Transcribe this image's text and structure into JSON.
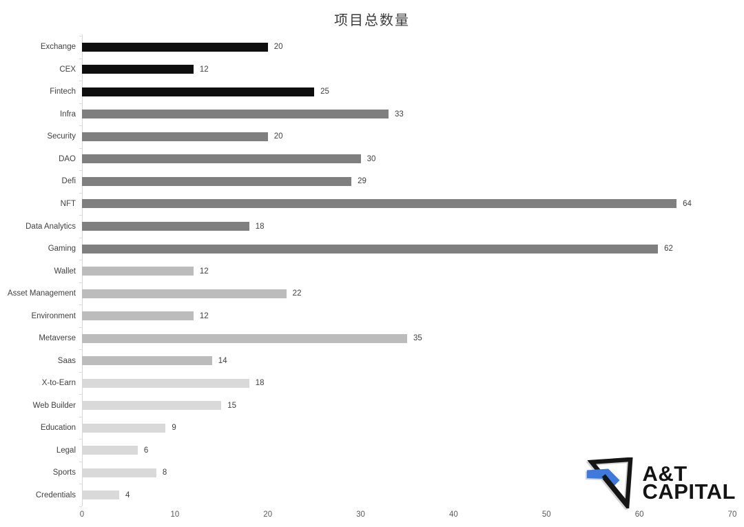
{
  "chart_data": {
    "type": "bar",
    "orientation": "horizontal",
    "title": "项目总数量",
    "categories": [
      "Exchange",
      "CEX",
      "Fintech",
      "Infra",
      "Security",
      "DAO",
      "Defi",
      "NFT",
      "Data Analytics",
      "Gaming",
      "Wallet",
      "Asset Management",
      "Environment",
      "Metaverse",
      "Saas",
      "X-to-Earn",
      "Web Builder",
      "Education",
      "Legal",
      "Sports",
      "Credentials"
    ],
    "values": [
      20,
      12,
      25,
      33,
      20,
      30,
      29,
      64,
      18,
      62,
      12,
      22,
      12,
      35,
      14,
      18,
      15,
      9,
      6,
      8,
      4
    ],
    "bar_colors": [
      "#0e0e0e",
      "#0e0e0e",
      "#0e0e0e",
      "#7f7f7f",
      "#7f7f7f",
      "#7f7f7f",
      "#7f7f7f",
      "#7f7f7f",
      "#7f7f7f",
      "#7f7f7f",
      "#bcbcbc",
      "#bcbcbc",
      "#bcbcbc",
      "#bcbcbc",
      "#bcbcbc",
      "#d9d9d9",
      "#d9d9d9",
      "#d9d9d9",
      "#d9d9d9",
      "#d9d9d9",
      "#d9d9d9"
    ],
    "xlim": [
      0,
      70
    ],
    "x_ticks": [
      0,
      10,
      20,
      30,
      40,
      50,
      60,
      70
    ],
    "xlabel": "",
    "ylabel": "",
    "grid": false,
    "legend": false,
    "value_labels": true
  },
  "colors": {
    "bar_black": "#0e0e0e",
    "bar_dark_gray": "#7f7f7f",
    "bar_mid_gray": "#bcbcbc",
    "bar_light_gray": "#d9d9d9",
    "axis_line": "#d6d6d6",
    "label_text": "#404040",
    "tick_text": "#595959",
    "logo_blue": "#4079dd",
    "logo_black": "#141414"
  },
  "logo": {
    "line1": "A&T",
    "line2": "CAPITAL"
  }
}
